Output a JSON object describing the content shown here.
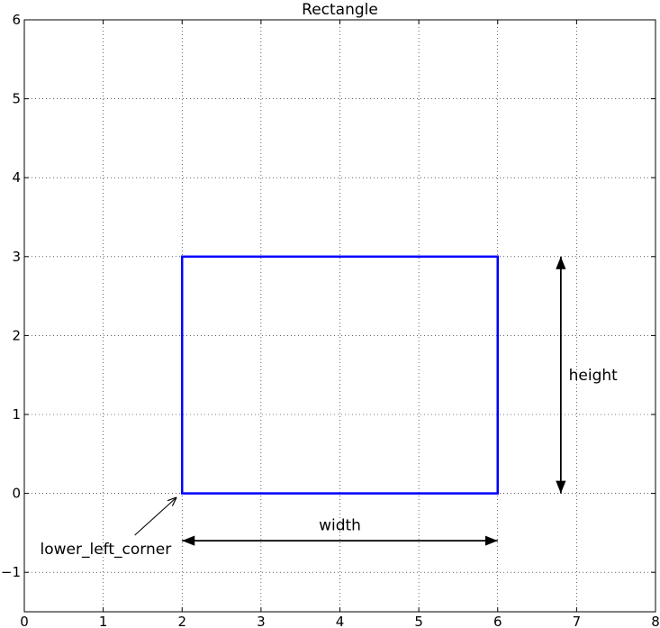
{
  "chart_data": {
    "type": "diagram",
    "title": "Rectangle",
    "xlim": [
      0,
      8
    ],
    "ylim": [
      -1.5,
      6
    ],
    "xticks": [
      0,
      1,
      2,
      3,
      4,
      5,
      6,
      7,
      8
    ],
    "yticks": [
      -1,
      0,
      1,
      2,
      3,
      4,
      5,
      6
    ],
    "xtick_labels": [
      "0",
      "1",
      "2",
      "3",
      "4",
      "5",
      "6",
      "7",
      "8"
    ],
    "ytick_labels": [
      "−1",
      "0",
      "1",
      "2",
      "3",
      "4",
      "5",
      "6"
    ],
    "grid": true,
    "rectangle": {
      "x": 2,
      "y": 0,
      "width": 4,
      "height": 3,
      "color": "#0000ff"
    },
    "annotations": [
      {
        "name": "width",
        "text": "width",
        "text_xy": [
          4,
          -0.4
        ],
        "arrow": "double",
        "from": [
          2,
          -0.6
        ],
        "to": [
          6,
          -0.6
        ]
      },
      {
        "name": "height",
        "text": "height",
        "text_xy": [
          6.9,
          1.5
        ],
        "arrow": "double",
        "from": [
          6.8,
          0
        ],
        "to": [
          6.8,
          3
        ]
      },
      {
        "name": "lower-left-corner",
        "text": "lower_left_corner",
        "text_xy": [
          0.2,
          -0.7
        ],
        "arrow": "single",
        "from": [
          1.4,
          -0.53
        ],
        "to": [
          1.93,
          -0.05
        ]
      }
    ]
  }
}
